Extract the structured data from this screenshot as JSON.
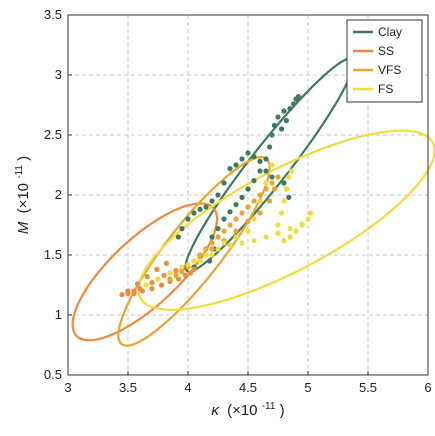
{
  "chart_data": {
    "type": "scatter",
    "xlabel": {
      "symbol": "κ",
      "scale": "(×10",
      "exp": "-11",
      "close": ")"
    },
    "ylabel": {
      "symbol": "M",
      "scale": "(×10",
      "exp": "-11",
      "close": ")"
    },
    "xlim": [
      3,
      6
    ],
    "ylim": [
      0.5,
      3.5
    ],
    "xticks": [
      3,
      3.5,
      4,
      4.5,
      5,
      5.5,
      6
    ],
    "yticks": [
      0.5,
      1,
      1.5,
      2,
      2.5,
      3,
      3.5
    ],
    "xtick_labels": [
      "3",
      "3.5",
      "4",
      "4.5",
      "5",
      "5.5",
      "6"
    ],
    "ytick_labels": [
      "0.5",
      "1",
      "1.5",
      "2",
      "2.5",
      "3",
      "3.5"
    ],
    "grid": true,
    "legend_position": "top-right",
    "series": [
      {
        "name": "Clay",
        "color": "#3f7a5e",
        "ellipse": {
          "cx": 4.68,
          "cy": 2.25,
          "rx": 1.12,
          "ry": 0.16,
          "angle_deg": 52
        },
        "points": [
          [
            4.05,
            1.4
          ],
          [
            4.1,
            1.48
          ],
          [
            4.15,
            1.55
          ],
          [
            4.2,
            1.65
          ],
          [
            4.25,
            1.72
          ],
          [
            4.3,
            1.8
          ],
          [
            4.35,
            1.86
          ],
          [
            4.4,
            1.92
          ],
          [
            4.45,
            1.98
          ],
          [
            4.5,
            2.05
          ],
          [
            4.55,
            2.12
          ],
          [
            4.6,
            2.2
          ],
          [
            4.65,
            2.3
          ],
          [
            4.68,
            2.4
          ],
          [
            4.7,
            2.5
          ],
          [
            4.72,
            2.58
          ],
          [
            4.75,
            2.65
          ],
          [
            4.78,
            2.55
          ],
          [
            4.8,
            2.7
          ],
          [
            4.82,
            2.62
          ],
          [
            4.85,
            2.72
          ],
          [
            4.88,
            2.76
          ],
          [
            4.9,
            2.8
          ],
          [
            4.92,
            2.82
          ],
          [
            4.8,
            2.1
          ],
          [
            4.82,
            2.05
          ],
          [
            4.84,
            1.98
          ],
          [
            4.7,
            2.15
          ],
          [
            4.65,
            2.2
          ],
          [
            4.6,
            2.28
          ],
          [
            4.55,
            2.32
          ],
          [
            4.5,
            2.35
          ],
          [
            4.45,
            2.3
          ],
          [
            4.4,
            2.25
          ],
          [
            4.35,
            2.22
          ],
          [
            4.3,
            2.1
          ],
          [
            4.25,
            2.0
          ],
          [
            4.2,
            1.95
          ],
          [
            4.15,
            1.9
          ],
          [
            4.1,
            1.88
          ],
          [
            4.05,
            1.85
          ],
          [
            4.0,
            1.8
          ],
          [
            3.95,
            1.72
          ],
          [
            3.92,
            1.65
          ],
          [
            4.18,
            1.45
          ],
          [
            4.22,
            1.55
          ]
        ]
      },
      {
        "name": "SS",
        "color": "#ee8a3c",
        "ellipse": {
          "cx": 3.64,
          "cy": 1.36,
          "rx": 0.78,
          "ry": 0.28,
          "angle_deg": 43
        },
        "points": [
          [
            3.45,
            1.17
          ],
          [
            3.5,
            1.18
          ],
          [
            3.55,
            1.2
          ],
          [
            3.6,
            1.22
          ],
          [
            3.65,
            1.25
          ],
          [
            3.7,
            1.27
          ],
          [
            3.75,
            1.3
          ],
          [
            3.8,
            1.33
          ],
          [
            3.85,
            1.35
          ],
          [
            3.9,
            1.37
          ],
          [
            3.95,
            1.38
          ],
          [
            4.0,
            1.4
          ],
          [
            4.05,
            1.38
          ],
          [
            4.02,
            1.35
          ],
          [
            3.98,
            1.33
          ],
          [
            3.92,
            1.3
          ],
          [
            3.85,
            1.28
          ],
          [
            3.78,
            1.25
          ],
          [
            3.7,
            1.22
          ],
          [
            3.62,
            1.2
          ],
          [
            3.55,
            1.18
          ],
          [
            3.5,
            1.2
          ],
          [
            3.58,
            1.26
          ],
          [
            3.66,
            1.32
          ],
          [
            3.74,
            1.38
          ],
          [
            3.82,
            1.43
          ]
        ]
      },
      {
        "name": "VFS",
        "color": "#eaa52c",
        "ellipse": {
          "cx": 4.05,
          "cy": 1.53,
          "rx": 0.98,
          "ry": 0.23,
          "angle_deg": 52
        },
        "points": [
          [
            3.85,
            1.3
          ],
          [
            3.9,
            1.33
          ],
          [
            3.95,
            1.36
          ],
          [
            4.0,
            1.4
          ],
          [
            4.05,
            1.45
          ],
          [
            4.1,
            1.5
          ],
          [
            4.15,
            1.55
          ],
          [
            4.2,
            1.6
          ],
          [
            4.25,
            1.65
          ],
          [
            4.3,
            1.7
          ],
          [
            4.35,
            1.75
          ],
          [
            4.4,
            1.8
          ],
          [
            4.45,
            1.85
          ],
          [
            4.5,
            1.9
          ],
          [
            4.55,
            1.95
          ],
          [
            4.6,
            2.0
          ],
          [
            4.65,
            2.05
          ],
          [
            4.7,
            2.1
          ],
          [
            4.75,
            2.15
          ],
          [
            4.72,
            2.05
          ],
          [
            4.68,
            1.95
          ],
          [
            4.6,
            1.85
          ],
          [
            4.5,
            1.78
          ],
          [
            4.4,
            1.7
          ],
          [
            4.3,
            1.62
          ],
          [
            4.2,
            1.55
          ],
          [
            4.1,
            1.48
          ]
        ]
      },
      {
        "name": "FS",
        "color": "#f2dc3a",
        "ellipse": {
          "cx": 4.82,
          "cy": 1.79,
          "rx": 1.38,
          "ry": 0.42,
          "angle_deg": 28
        },
        "points": [
          [
            3.65,
            1.25
          ],
          [
            3.75,
            1.3
          ],
          [
            3.85,
            1.35
          ],
          [
            3.95,
            1.4
          ],
          [
            4.05,
            1.45
          ],
          [
            4.15,
            1.5
          ],
          [
            4.25,
            1.55
          ],
          [
            4.35,
            1.58
          ],
          [
            4.45,
            1.6
          ],
          [
            4.55,
            1.62
          ],
          [
            4.65,
            1.65
          ],
          [
            4.75,
            1.68
          ],
          [
            4.85,
            1.72
          ],
          [
            4.95,
            1.76
          ],
          [
            5.0,
            1.8
          ],
          [
            5.02,
            1.85
          ],
          [
            4.95,
            1.75
          ],
          [
            4.9,
            1.7
          ],
          [
            4.85,
            1.65
          ],
          [
            4.8,
            1.62
          ],
          [
            4.75,
            1.75
          ],
          [
            4.78,
            1.85
          ],
          [
            4.8,
            1.95
          ],
          [
            4.82,
            2.05
          ],
          [
            4.84,
            2.15
          ],
          [
            4.86,
            2.2
          ],
          [
            4.7,
            2.25
          ],
          [
            4.65,
            2.1
          ],
          [
            4.6,
            1.95
          ],
          [
            4.55,
            1.8
          ],
          [
            4.5,
            1.7
          ],
          [
            4.4,
            1.65
          ],
          [
            4.3,
            1.6
          ],
          [
            4.2,
            1.5
          ],
          [
            4.1,
            1.45
          ],
          [
            4.0,
            1.42
          ]
        ]
      }
    ]
  }
}
